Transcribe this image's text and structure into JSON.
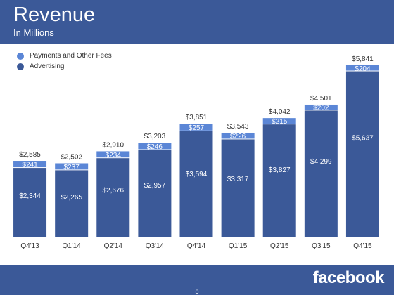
{
  "header": {
    "title": "Revenue",
    "subtitle": "In Millions"
  },
  "footer": {
    "page_number": "8",
    "logo_text": "facebook"
  },
  "colors": {
    "advertising": "#3b5998",
    "payments": "#5b86d6",
    "header_bg": "#3b5998"
  },
  "chart_data": {
    "type": "bar",
    "stacked": true,
    "categories": [
      "Q4'13",
      "Q1'14",
      "Q2'14",
      "Q3'14",
      "Q4'14",
      "Q1'15",
      "Q2'15",
      "Q3'15",
      "Q4'15"
    ],
    "series": [
      {
        "name": "Advertising",
        "values": [
          2344,
          2265,
          2676,
          2957,
          3594,
          3317,
          3827,
          4299,
          5637
        ],
        "labels": [
          "$2,344",
          "$2,265",
          "$2,676",
          "$2,957",
          "$3,594",
          "$3,317",
          "$3,827",
          "$4,299",
          "$5,637"
        ]
      },
      {
        "name": "Payments and Other Fees",
        "values": [
          241,
          237,
          234,
          246,
          257,
          226,
          215,
          202,
          204
        ],
        "labels": [
          "$241",
          "$237",
          "$234",
          "$246",
          "$257",
          "$226",
          "$215",
          "$202",
          "$204"
        ]
      }
    ],
    "totals": [
      2585,
      2502,
      2910,
      3203,
      3851,
      3543,
      4042,
      4501,
      5841
    ],
    "total_labels": [
      "$2,585",
      "$2,502",
      "$2,910",
      "$3,203",
      "$3,851",
      "$3,543",
      "$4,042",
      "$4,501",
      "$5,841"
    ],
    "ylim": [
      0,
      6000
    ],
    "grid": false,
    "legend": "top-left"
  }
}
